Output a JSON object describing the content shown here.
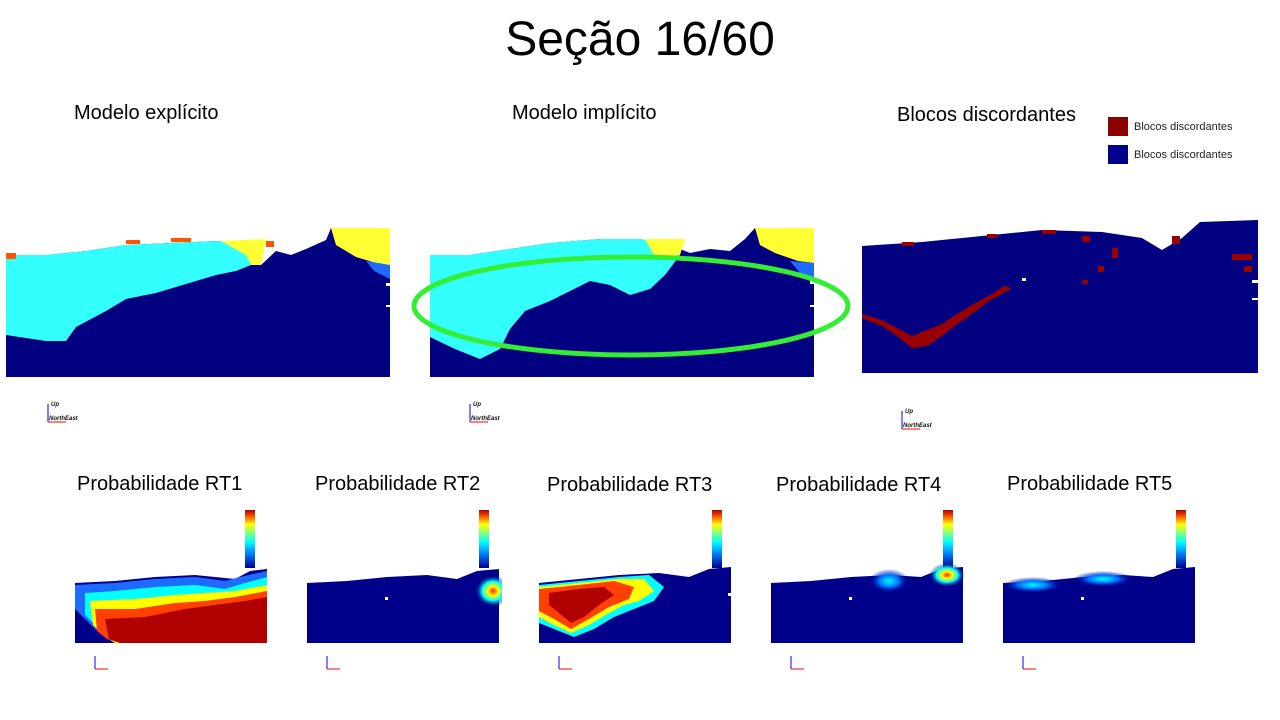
{
  "title": "Seção 16/60",
  "top_panels": [
    {
      "label": "Modelo explícito"
    },
    {
      "label": "Modelo implícito"
    },
    {
      "label": "Blocos discordantes"
    }
  ],
  "legend": {
    "items": [
      {
        "label": "Blocos discordantes",
        "color": "#8b0000"
      },
      {
        "label": "Blocos discordantes",
        "color": "#00008b"
      }
    ]
  },
  "bottom_panels": [
    {
      "label": "Probabilidade RT1"
    },
    {
      "label": "Probabilidade RT2"
    },
    {
      "label": "Probabilidade RT3"
    },
    {
      "label": "Probabilidade RT4"
    },
    {
      "label": "Probabilidade RT5"
    }
  ],
  "axis": {
    "up": "Up",
    "north": "North",
    "east": "East"
  },
  "colors": {
    "dark_blue": "#000080",
    "cyan": "#33ffff",
    "yellow": "#ffff33",
    "orange": "#ff5500",
    "discord_red": "#990000",
    "highlight_green": "#33ee33"
  }
}
